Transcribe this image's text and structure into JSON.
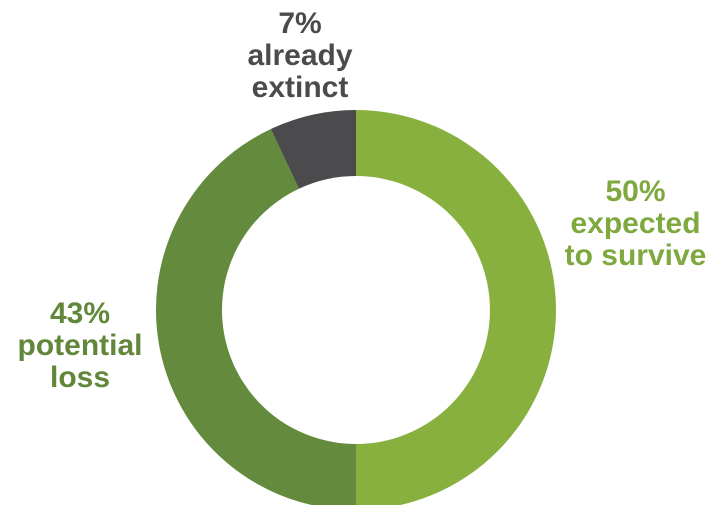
{
  "chart_data": {
    "type": "pie",
    "donut": true,
    "slices": [
      {
        "label": "expected to survive",
        "value": 50,
        "value_text": "50%",
        "color": "#87b03f"
      },
      {
        "label": "potential loss",
        "value": 43,
        "value_text": "43%",
        "color": "#648a3d"
      },
      {
        "label": "already extinct",
        "value": 7,
        "value_text": "7%",
        "color": "#4b4b4d"
      }
    ],
    "labels": {
      "extinct": {
        "value": "7%",
        "line1": "already",
        "line2": "extinct"
      },
      "survive": {
        "value": "50%",
        "line1": "expected",
        "line2": "to survive"
      },
      "loss": {
        "value": "43%",
        "line1": "potential",
        "line2": "loss"
      }
    }
  }
}
